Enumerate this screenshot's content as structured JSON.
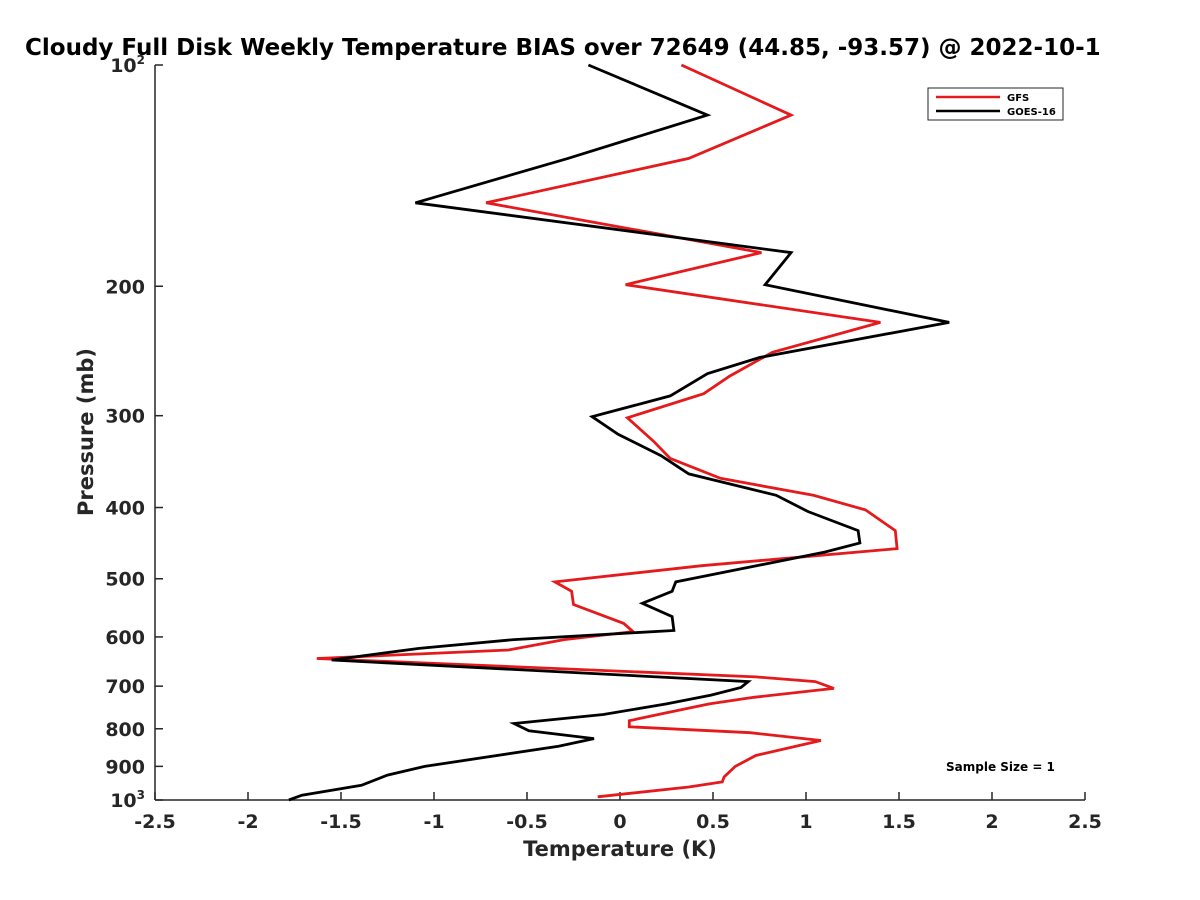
{
  "chart_data": {
    "type": "line",
    "title": "Cloudy Full Disk Weekly Temperature BIAS over 72649 (44.85, -93.57) @ 2022-10-1",
    "xlabel": "Temperature (K)",
    "ylabel": "Pressure (mb)",
    "xlim": [
      -2.5,
      2.5
    ],
    "ylim": [
      100,
      1000
    ],
    "y_scale": "log",
    "y_reversed": true,
    "grid": false,
    "legend_position": "top-right",
    "x_ticks": [
      "-2.5",
      "-2",
      "-1.5",
      "-1",
      "-0.5",
      "0",
      "0.5",
      "1",
      "1.5",
      "2",
      "2.5"
    ],
    "x_tick_values": [
      -2.5,
      -2,
      -1.5,
      -1,
      -0.5,
      0,
      0.5,
      1,
      1.5,
      2,
      2.5
    ],
    "y_ticks": [
      {
        "value": 100,
        "base": "10",
        "exp": "2"
      },
      {
        "value": 200,
        "label": "200"
      },
      {
        "value": 300,
        "label": "300"
      },
      {
        "value": 400,
        "label": "400"
      },
      {
        "value": 500,
        "label": "500"
      },
      {
        "value": 600,
        "label": "600"
      },
      {
        "value": 700,
        "label": "700"
      },
      {
        "value": 800,
        "label": "800"
      },
      {
        "value": 900,
        "label": "900"
      },
      {
        "value": 1000,
        "base": "10",
        "exp": "3"
      }
    ],
    "annotation": "Sample Size = 1",
    "series": [
      {
        "name": "GFS",
        "color": "#e41a1c",
        "points": [
          [
            0.33,
            100
          ],
          [
            0.92,
            117
          ],
          [
            0.37,
            134
          ],
          [
            -0.72,
            154
          ],
          [
            0.76,
            180
          ],
          [
            0.03,
            199
          ],
          [
            1.4,
            224
          ],
          [
            0.82,
            246
          ],
          [
            0.59,
            265
          ],
          [
            0.45,
            280
          ],
          [
            0.04,
            302
          ],
          [
            0.18,
            325
          ],
          [
            0.27,
            343
          ],
          [
            0.54,
            365
          ],
          [
            1.04,
            385
          ],
          [
            1.32,
            403
          ],
          [
            1.48,
            430
          ],
          [
            1.49,
            455
          ],
          [
            0.44,
            480
          ],
          [
            -0.35,
            505
          ],
          [
            -0.26,
            520
          ],
          [
            -0.25,
            542
          ],
          [
            0.02,
            575
          ],
          [
            0.07,
            590
          ],
          [
            -0.3,
            605
          ],
          [
            -0.6,
            625
          ],
          [
            -1.63,
            642
          ],
          [
            0.73,
            680
          ],
          [
            1.05,
            690
          ],
          [
            1.15,
            705
          ],
          [
            0.72,
            725
          ],
          [
            0.48,
            740
          ],
          [
            0.26,
            760
          ],
          [
            0.05,
            780
          ],
          [
            0.05,
            795
          ],
          [
            0.7,
            810
          ],
          [
            1.08,
            830
          ],
          [
            0.73,
            870
          ],
          [
            0.62,
            900
          ],
          [
            0.56,
            930
          ],
          [
            0.55,
            945
          ],
          [
            0.37,
            960
          ],
          [
            -0.12,
            990
          ]
        ]
      },
      {
        "name": "GOES-16",
        "color": "#000000",
        "points": [
          [
            -0.17,
            100
          ],
          [
            0.47,
            117
          ],
          [
            -0.28,
            134
          ],
          [
            -1.1,
            154
          ],
          [
            0.92,
            180
          ],
          [
            0.78,
            199
          ],
          [
            1.77,
            224
          ],
          [
            0.75,
            250
          ],
          [
            0.47,
            263
          ],
          [
            0.27,
            282
          ],
          [
            -0.15,
            301
          ],
          [
            -0.01,
            318
          ],
          [
            0.22,
            340
          ],
          [
            0.37,
            360
          ],
          [
            0.84,
            385
          ],
          [
            1.01,
            405
          ],
          [
            1.28,
            430
          ],
          [
            1.29,
            447
          ],
          [
            1.1,
            460
          ],
          [
            0.3,
            505
          ],
          [
            0.28,
            520
          ],
          [
            0.12,
            540
          ],
          [
            0.28,
            563
          ],
          [
            0.29,
            588
          ],
          [
            -0.57,
            605
          ],
          [
            -1.08,
            622
          ],
          [
            -1.55,
            645
          ],
          [
            0.69,
            690
          ],
          [
            0.65,
            703
          ],
          [
            0.49,
            720
          ],
          [
            0.25,
            740
          ],
          [
            -0.09,
            765
          ],
          [
            -0.57,
            787
          ],
          [
            -0.49,
            805
          ],
          [
            -0.14,
            825
          ],
          [
            -0.33,
            845
          ],
          [
            -1.05,
            900
          ],
          [
            -1.25,
            925
          ],
          [
            -1.39,
            955
          ],
          [
            -1.71,
            985
          ],
          [
            -1.78,
            1000
          ]
        ]
      }
    ]
  }
}
